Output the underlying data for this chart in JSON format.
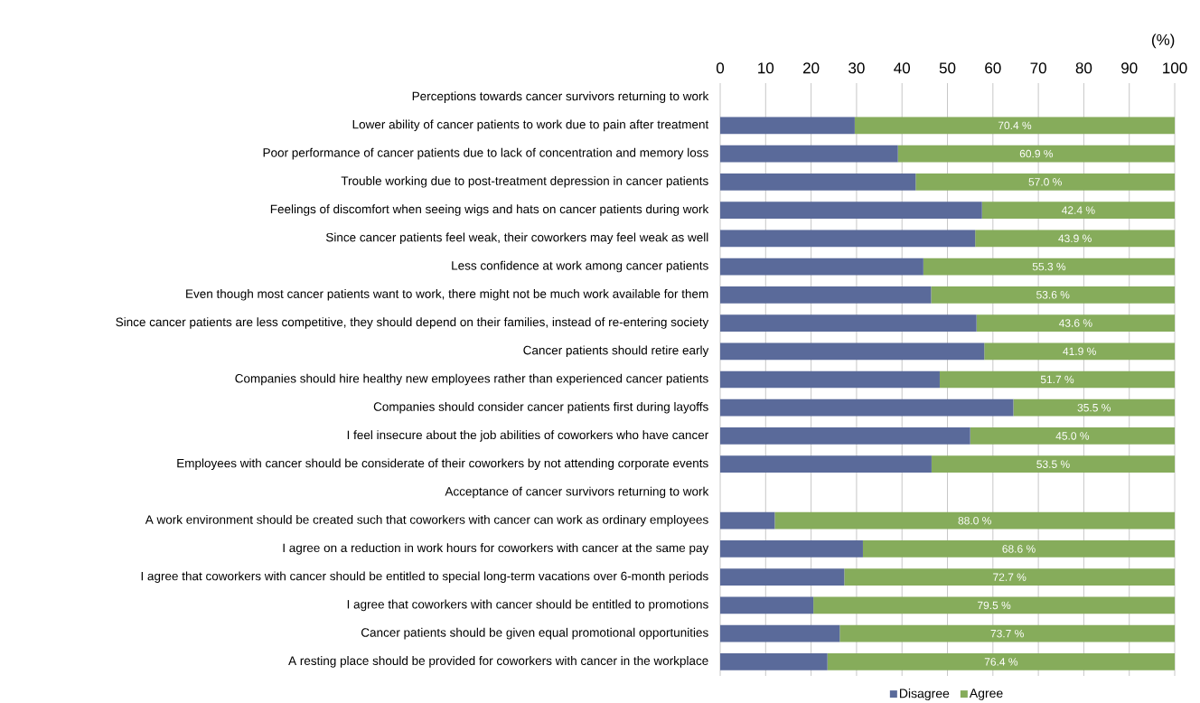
{
  "chart_data": {
    "type": "bar",
    "orientation": "horizontal",
    "stacked": true,
    "xlabel": "(%)",
    "categories": [
      "Perceptions towards cancer survivors returning to work",
      "Lower ability of cancer patients to work due to pain after treatment",
      "Poor performance of cancer patients due to lack of concentration and memory loss",
      "Trouble working due to post-treatment depression in cancer patients",
      "Feelings of discomfort when seeing wigs and hats on cancer patients during work",
      "Since cancer patients feel weak, their coworkers may feel weak as well",
      "Less confidence at work among cancer patients",
      "Even though most cancer patients want to work, there might not be much work available for them",
      "Since cancer patients are less competitive, they should depend on their families, instead of re-entering society",
      "Cancer patients should retire early",
      "Companies should hire healthy new employees rather than experienced cancer patients",
      "Companies should consider cancer patients first during layoffs",
      "I feel insecure about the job abilities of coworkers who have cancer",
      "Employees with cancer should be considerate of their coworkers by not attending corporate events",
      "Acceptance of cancer survivors returning to work",
      "A work environment should be created such that coworkers with cancer can work as ordinary employees",
      "I agree on a reduction in work hours for coworkers with cancer at the same pay",
      "I agree that coworkers with cancer should be entitled to special long-term vacations over 6-month periods",
      "I agree that coworkers with cancer should be entitled to promotions",
      "Cancer patients should be given equal promotional opportunities",
      "A resting place should be provided for coworkers with cancer in the workplace"
    ],
    "series": [
      {
        "name": "Disagree",
        "color": "#5a6a9a",
        "values": [
          null,
          29.6,
          39.1,
          43.0,
          57.6,
          56.1,
          44.7,
          46.4,
          56.4,
          58.1,
          48.3,
          64.5,
          55.0,
          46.5,
          null,
          12.0,
          31.4,
          27.3,
          20.5,
          26.3,
          23.6
        ]
      },
      {
        "name": "Agree",
        "color": "#86ac5b",
        "values": [
          null,
          70.4,
          60.9,
          57.0,
          42.4,
          43.9,
          55.3,
          53.6,
          43.6,
          41.9,
          51.7,
          35.5,
          45.0,
          53.5,
          null,
          88.0,
          68.6,
          72.7,
          79.5,
          73.7,
          76.4
        ],
        "value_labels": [
          null,
          "70.4 %",
          "60.9 %",
          "57.0 %",
          "42.4 %",
          "43.9 %",
          "55.3 %",
          "53.6 %",
          "43.6 %",
          "41.9 %",
          "51.7 %",
          "35.5 %",
          "45.0 %",
          "53.5 %",
          null,
          "88.0 %",
          "68.6 %",
          "72.7 %",
          "79.5 %",
          "73.7 %",
          "76.4 %"
        ]
      }
    ],
    "xlim": [
      0,
      100
    ],
    "xticks": [
      0,
      10,
      20,
      30,
      40,
      50,
      60,
      70,
      80,
      90,
      100
    ],
    "grid": "x",
    "legend": "bottom"
  }
}
